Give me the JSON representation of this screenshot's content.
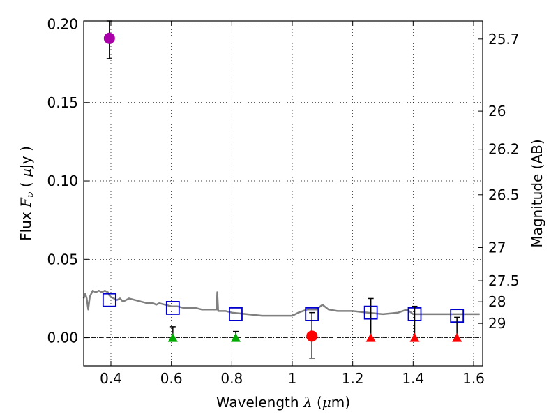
{
  "chart_data": {
    "type": "scatter",
    "xlabel": "Wavelength  λ (μm)",
    "ylabel": "Flux  F_ν  ( μJy )",
    "ylabel_parts": {
      "prefix": "Flux  ",
      "var": "F",
      "sub": "ν",
      "unit_open": "  ( ",
      "mu": "μ",
      "unit_rest": "Jy )"
    },
    "xlabel_parts": {
      "prefix": "Wavelength  ",
      "var": "λ",
      "unit_open": " (",
      "mu": "μ",
      "unit_rest": "m)"
    },
    "y2label": "Magnitude (AB)",
    "xlim": [
      0.31,
      1.63
    ],
    "ylim": [
      -0.018,
      0.202
    ],
    "grid": true,
    "x_ticks": [
      {
        "value": 0.4,
        "label": "0.4"
      },
      {
        "value": 0.6,
        "label": "0.6"
      },
      {
        "value": 0.8,
        "label": "0.8"
      },
      {
        "value": 1.0,
        "label": "1"
      },
      {
        "value": 1.2,
        "label": "1.2"
      },
      {
        "value": 1.4,
        "label": "1.4"
      },
      {
        "value": 1.6,
        "label": "1.6"
      }
    ],
    "y_ticks": [
      {
        "value": 0.0,
        "label": "0.00"
      },
      {
        "value": 0.05,
        "label": "0.05"
      },
      {
        "value": 0.1,
        "label": "0.10"
      },
      {
        "value": 0.15,
        "label": "0.15"
      },
      {
        "value": 0.2,
        "label": "0.20"
      }
    ],
    "y2_ticks": [
      {
        "label": "25.7",
        "flux": 0.1905
      },
      {
        "label": "26",
        "flux": 0.1445
      },
      {
        "label": "26.2",
        "flux": 0.1202
      },
      {
        "label": "26.5",
        "flux": 0.0912
      },
      {
        "label": "27",
        "flux": 0.0575
      },
      {
        "label": "27.5",
        "flux": 0.0363
      },
      {
        "label": "28",
        "flux": 0.0229
      },
      {
        "label": "29",
        "flux": 0.0091
      }
    ],
    "zero_line": 0.0,
    "series": [
      {
        "name": "model_sed",
        "kind": "line",
        "color": "#808080",
        "x": [
          0.31,
          0.315,
          0.32,
          0.325,
          0.33,
          0.335,
          0.34,
          0.35,
          0.36,
          0.37,
          0.38,
          0.39,
          0.395,
          0.4,
          0.41,
          0.42,
          0.43,
          0.44,
          0.45,
          0.46,
          0.48,
          0.5,
          0.52,
          0.54,
          0.55,
          0.56,
          0.58,
          0.6,
          0.62,
          0.64,
          0.66,
          0.68,
          0.7,
          0.72,
          0.74,
          0.75,
          0.752,
          0.755,
          0.76,
          0.78,
          0.8,
          0.85,
          0.9,
          0.95,
          1.0,
          1.02,
          1.05,
          1.08,
          1.1,
          1.12,
          1.15,
          1.2,
          1.25,
          1.3,
          1.35,
          1.38,
          1.4,
          1.45,
          1.5,
          1.55,
          1.6,
          1.62
        ],
        "y": [
          0.025,
          0.028,
          0.025,
          0.018,
          0.026,
          0.028,
          0.03,
          0.029,
          0.03,
          0.029,
          0.03,
          0.029,
          0.027,
          0.026,
          0.025,
          0.024,
          0.025,
          0.023,
          0.024,
          0.025,
          0.024,
          0.023,
          0.022,
          0.022,
          0.021,
          0.022,
          0.021,
          0.02,
          0.02,
          0.019,
          0.019,
          0.019,
          0.018,
          0.018,
          0.018,
          0.018,
          0.029,
          0.017,
          0.017,
          0.017,
          0.016,
          0.015,
          0.014,
          0.014,
          0.014,
          0.016,
          0.018,
          0.018,
          0.021,
          0.018,
          0.017,
          0.017,
          0.016,
          0.015,
          0.016,
          0.018,
          0.015,
          0.015,
          0.015,
          0.015,
          0.015,
          0.015
        ]
      },
      {
        "name": "model_band_flux",
        "kind": "open_square",
        "color": "#0000cc",
        "x": [
          0.395,
          0.605,
          0.813,
          1.065,
          1.26,
          1.405,
          1.545
        ],
        "y": [
          0.024,
          0.019,
          0.015,
          0.015,
          0.016,
          0.015,
          0.014
        ]
      },
      {
        "name": "detection_blue",
        "kind": "circle",
        "color": "#aa00aa",
        "x": [
          0.395
        ],
        "y": [
          0.191
        ],
        "yerr_low": [
          0.178
        ],
        "yerr_high": [
          0.202
        ]
      },
      {
        "name": "detection_nir",
        "kind": "circle",
        "color": "#ff0000",
        "x": [
          1.065
        ],
        "y": [
          0.001
        ],
        "yerr_low": [
          -0.013
        ],
        "yerr_high": [
          0.016
        ]
      },
      {
        "name": "upper_limits_optical",
        "kind": "triangle",
        "color": "#00aa00",
        "x": [
          0.605,
          0.813
        ],
        "y": [
          0.0,
          0.0
        ],
        "yerr_low": [
          0.0,
          0.0
        ],
        "yerr_high": [
          0.007,
          0.004
        ]
      },
      {
        "name": "upper_limits_nir",
        "kind": "triangle",
        "color": "#ff0000",
        "x": [
          1.26,
          1.405,
          1.545
        ],
        "y": [
          0.0,
          0.0,
          0.0
        ],
        "yerr_low": [
          0.0,
          0.0,
          0.0
        ],
        "yerr_high": [
          0.025,
          0.02,
          0.013
        ]
      }
    ]
  }
}
